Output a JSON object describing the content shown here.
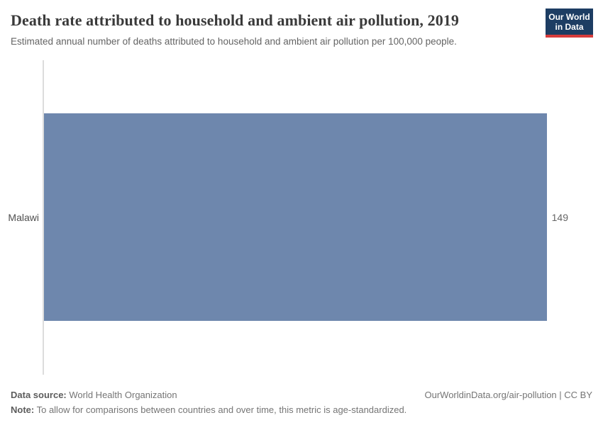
{
  "header": {
    "title": "Death rate attributed to household and ambient air pollution, 2019",
    "subtitle": "Estimated annual number of deaths attributed to household and ambient air pollution per 100,000 people.",
    "logo": {
      "line1": "Our World",
      "line2": "in Data",
      "bg_color": "#1d3d63",
      "stripe_color": "#d73c3c"
    }
  },
  "chart_data": {
    "type": "bar",
    "orientation": "horizontal",
    "title": "Death rate attributed to household and ambient air pollution, 2019",
    "categories": [
      "Malawi"
    ],
    "values": [
      149
    ],
    "value_labels": [
      "149"
    ],
    "xlim": [
      0,
      149
    ],
    "grid": false,
    "legend": "none",
    "bar_color": "#6e87ad",
    "axis_line_color": "#dcdcdc"
  },
  "footer": {
    "datasource_label": "Data source:",
    "datasource_value": " World Health Organization",
    "note_label": "Note:",
    "note_value": " To allow for comparisons between countries and over time, this metric is age-standardized.",
    "license": "OurWorldinData.org/air-pollution | CC BY"
  }
}
